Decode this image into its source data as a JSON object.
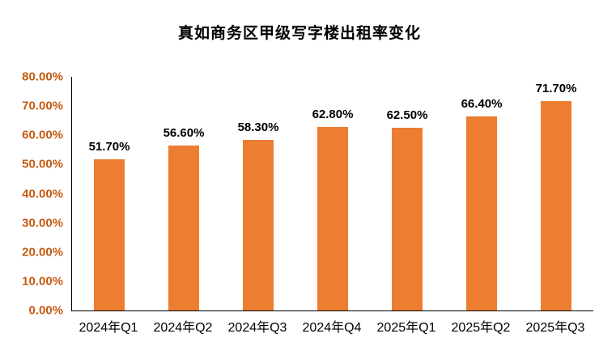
{
  "title": "真如商务区甲级写字楼出租率变化",
  "chart_data": {
    "type": "bar",
    "title": "真如商务区甲级写字楼出租率变化",
    "categories": [
      "2024年Q1",
      "2024年Q2",
      "2024年Q3",
      "2024年Q4",
      "2025年Q1",
      "2025年Q2",
      "2025年Q3"
    ],
    "values": [
      51.7,
      56.6,
      58.3,
      62.8,
      62.5,
      66.4,
      71.7
    ],
    "value_labels": [
      "51.70%",
      "56.60%",
      "58.30%",
      "62.80%",
      "62.50%",
      "66.40%",
      "71.70%"
    ],
    "xlabel": "",
    "ylabel": "",
    "ylim": [
      0,
      80
    ],
    "y_ticks": [
      "0.00%",
      "10.00%",
      "20.00%",
      "30.00%",
      "40.00%",
      "50.00%",
      "60.00%",
      "70.00%",
      "80.00%"
    ],
    "grid": false,
    "legend": "none",
    "bar_color": "#ED7D31",
    "tick_label_color": "#C55A11",
    "data_label_color": "#000000",
    "axis_color": "#000000"
  }
}
